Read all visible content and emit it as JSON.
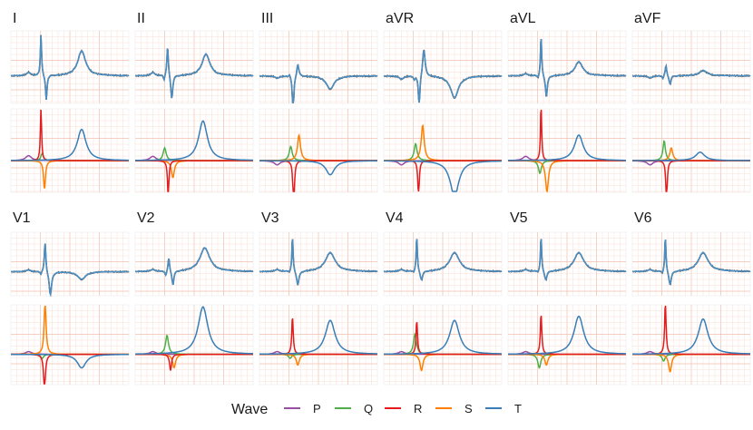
{
  "chart_data": {
    "type": "line",
    "title": "",
    "xlabel": "",
    "ylabel": "",
    "grid": true,
    "legend_position": "bottom",
    "legend_title": "Wave",
    "waves": [
      {
        "name": "P",
        "color": "#984ea3"
      },
      {
        "name": "Q",
        "color": "#4daf4a"
      },
      {
        "name": "R",
        "color": "#e41a1c"
      },
      {
        "name": "S",
        "color": "#ff7f00"
      },
      {
        "name": "T",
        "color": "#377eb8"
      }
    ],
    "signal_colors": {
      "raw": "#555555",
      "fit": "#4a8fc4"
    },
    "leads": [
      {
        "name": "I",
        "raw_waves": {
          "P": [
            0.3,
            -0.7,
            0.04
          ],
          "Q": [
            -0.3,
            -0.4,
            0.015
          ],
          "R": [
            3.8,
            -0.49,
            0.012
          ],
          "S": [
            -2.0,
            -0.4,
            0.015
          ],
          "T": [
            2.3,
            0.2,
            0.08
          ]
        },
        "components": {
          "P": [
            0.35,
            -0.7,
            0.06
          ],
          "Q": [
            0.5,
            -0.47,
            0.025
          ],
          "R": [
            3.8,
            -0.49,
            0.012
          ],
          "S": [
            -2.0,
            -0.43,
            0.02
          ],
          "T": [
            2.2,
            0.2,
            0.09
          ]
        }
      },
      {
        "name": "II",
        "raw_waves": {
          "P": [
            0.3,
            -0.7,
            0.04
          ],
          "Q": [
            -0.5,
            -0.51,
            0.012
          ],
          "R": [
            2.8,
            -0.45,
            0.015
          ],
          "S": [
            -2.2,
            -0.38,
            0.02
          ],
          "T": [
            2.0,
            0.2,
            0.08
          ]
        },
        "components": {
          "P": [
            0.3,
            -0.7,
            0.06
          ],
          "Q": [
            0.9,
            -0.5,
            0.03
          ],
          "R": [
            -2.5,
            -0.44,
            0.015
          ],
          "S": [
            -1.2,
            -0.36,
            0.03
          ],
          "T": [
            2.8,
            0.15,
            0.09
          ]
        }
      },
      {
        "name": "III",
        "raw_waves": {
          "P": [
            -0.2,
            -0.7,
            0.04
          ],
          "Q": [
            0.3,
            -0.49,
            0.015
          ],
          "R": [
            -3.5,
            -0.43,
            0.015
          ],
          "S": [
            1.2,
            -0.35,
            0.02
          ],
          "T": [
            -1.2,
            0.2,
            0.08
          ]
        },
        "components": {
          "P": [
            -0.3,
            -0.7,
            0.06
          ],
          "Q": [
            1.0,
            -0.47,
            0.03
          ],
          "R": [
            -3.5,
            -0.42,
            0.015
          ],
          "S": [
            1.8,
            -0.33,
            0.03
          ],
          "T": [
            -1.0,
            0.2,
            0.09
          ]
        }
      },
      {
        "name": "aVR",
        "raw_waves": {
          "P": [
            -0.3,
            -0.7,
            0.04
          ],
          "Q": [
            -0.3,
            -0.48,
            0.015
          ],
          "R": [
            -3.0,
            -0.4,
            0.015
          ],
          "S": [
            2.5,
            -0.32,
            0.025
          ],
          "T": [
            -2.0,
            0.2,
            0.08
          ]
        },
        "components": {
          "P": [
            -0.3,
            -0.7,
            0.06
          ],
          "Q": [
            1.2,
            -0.46,
            0.03
          ],
          "R": [
            -2.5,
            -0.41,
            0.015
          ],
          "S": [
            2.5,
            -0.34,
            0.03
          ],
          "T": [
            -2.5,
            0.2,
            0.09
          ]
        }
      },
      {
        "name": "aVL",
        "raw_waves": {
          "P": [
            0.2,
            -0.7,
            0.04
          ],
          "Q": [
            -0.3,
            -0.49,
            0.015
          ],
          "R": [
            3.8,
            -0.44,
            0.012
          ],
          "S": [
            -2.0,
            -0.35,
            0.02
          ],
          "T": [
            1.3,
            0.2,
            0.08
          ]
        },
        "components": {
          "P": [
            0.3,
            -0.7,
            0.06
          ],
          "Q": [
            -0.9,
            -0.46,
            0.03
          ],
          "R": [
            4.0,
            -0.44,
            0.012
          ],
          "S": [
            -2.2,
            -0.34,
            0.03
          ],
          "T": [
            1.8,
            0.2,
            0.09
          ]
        }
      },
      {
        "name": "aVF",
        "raw_waves": {
          "P": [
            -0.2,
            -0.7,
            0.04
          ],
          "Q": [
            -0.3,
            -0.48,
            0.012
          ],
          "R": [
            1.0,
            -0.43,
            0.015
          ],
          "S": [
            -0.8,
            -0.36,
            0.02
          ],
          "T": [
            0.5,
            0.2,
            0.08
          ]
        },
        "components": {
          "P": [
            -0.3,
            -0.7,
            0.06
          ],
          "Q": [
            1.4,
            -0.46,
            0.025
          ],
          "R": [
            -2.8,
            -0.42,
            0.015
          ],
          "S": [
            0.9,
            -0.34,
            0.03
          ],
          "T": [
            0.6,
            0.15,
            0.09
          ]
        }
      },
      {
        "name": "V1",
        "raw_waves": {
          "P": [
            0.2,
            -0.7,
            0.04
          ],
          "Q": [
            -0.3,
            -0.49,
            0.015
          ],
          "R": [
            3.2,
            -0.42,
            0.015
          ],
          "S": [
            -2.5,
            -0.33,
            0.025
          ],
          "T": [
            -0.8,
            0.2,
            0.08
          ]
        },
        "components": {
          "P": [
            0.2,
            -0.7,
            0.06
          ],
          "Q": [
            -0.3,
            -0.47,
            0.03
          ],
          "R": [
            -2.5,
            -0.43,
            0.02
          ],
          "S": [
            3.8,
            -0.42,
            0.02
          ],
          "T": [
            -1.0,
            0.2,
            0.09
          ]
        }
      },
      {
        "name": "V2",
        "raw_waves": {
          "P": [
            0.2,
            -0.7,
            0.04
          ],
          "Q": [
            -0.5,
            -0.48,
            0.015
          ],
          "R": [
            1.5,
            -0.43,
            0.015
          ],
          "S": [
            -1.5,
            -0.36,
            0.02
          ],
          "T": [
            2.5,
            0.18,
            0.1
          ]
        },
        "components": {
          "P": [
            0.2,
            -0.7,
            0.06
          ],
          "Q": [
            1.4,
            -0.46,
            0.03
          ],
          "R": [
            -1.2,
            -0.4,
            0.02
          ],
          "S": [
            -1.0,
            -0.34,
            0.03
          ],
          "T": [
            3.5,
            0.15,
            0.1
          ]
        }
      },
      {
        "name": "V3",
        "raw_waves": {
          "P": [
            0.2,
            -0.7,
            0.04
          ],
          "Q": [
            -0.2,
            -0.49,
            0.015
          ],
          "R": [
            3.8,
            -0.44,
            0.012
          ],
          "S": [
            -1.5,
            -0.35,
            0.025
          ],
          "T": [
            2.0,
            0.2,
            0.1
          ]
        },
        "components": {
          "P": [
            0.2,
            -0.7,
            0.06
          ],
          "Q": [
            -0.3,
            -0.48,
            0.03
          ],
          "R": [
            2.8,
            -0.44,
            0.015
          ],
          "S": [
            -0.8,
            -0.35,
            0.03
          ],
          "T": [
            2.5,
            0.2,
            0.1
          ]
        }
      },
      {
        "name": "V4",
        "raw_waves": {
          "P": [
            0.2,
            -0.7,
            0.04
          ],
          "Q": [
            -0.2,
            -0.49,
            0.015
          ],
          "R": [
            3.8,
            -0.44,
            0.012
          ],
          "S": [
            -1.0,
            -0.36,
            0.025
          ],
          "T": [
            2.0,
            0.2,
            0.1
          ]
        },
        "components": {
          "P": [
            0.2,
            -0.7,
            0.06
          ],
          "Q": [
            1.5,
            -0.47,
            0.03
          ],
          "R": [
            2.5,
            -0.44,
            0.015
          ],
          "S": [
            -1.2,
            -0.36,
            0.03
          ],
          "T": [
            2.5,
            0.2,
            0.1
          ]
        }
      },
      {
        "name": "V5",
        "raw_waves": {
          "P": [
            0.2,
            -0.7,
            0.04
          ],
          "Q": [
            -0.2,
            -0.49,
            0.015
          ],
          "R": [
            3.8,
            -0.44,
            0.012
          ],
          "S": [
            -1.0,
            -0.36,
            0.025
          ],
          "T": [
            2.0,
            0.2,
            0.1
          ]
        },
        "components": {
          "P": [
            0.2,
            -0.7,
            0.06
          ],
          "Q": [
            -1.0,
            -0.47,
            0.03
          ],
          "R": [
            3.0,
            -0.44,
            0.015
          ],
          "S": [
            -0.8,
            -0.35,
            0.03
          ],
          "T": [
            2.8,
            0.2,
            0.1
          ]
        }
      },
      {
        "name": "V6",
        "raw_waves": {
          "P": [
            0.2,
            -0.7,
            0.04
          ],
          "Q": [
            -0.3,
            -0.49,
            0.015
          ],
          "R": [
            3.8,
            -0.44,
            0.012
          ],
          "S": [
            -1.5,
            -0.36,
            0.025
          ],
          "T": [
            2.0,
            0.2,
            0.1
          ]
        },
        "components": {
          "P": [
            0.2,
            -0.7,
            0.06
          ],
          "Q": [
            -0.5,
            -0.47,
            0.03
          ],
          "R": [
            3.8,
            -0.44,
            0.015
          ],
          "S": [
            -1.3,
            -0.36,
            0.03
          ],
          "T": [
            2.6,
            0.2,
            0.1
          ]
        }
      }
    ]
  }
}
